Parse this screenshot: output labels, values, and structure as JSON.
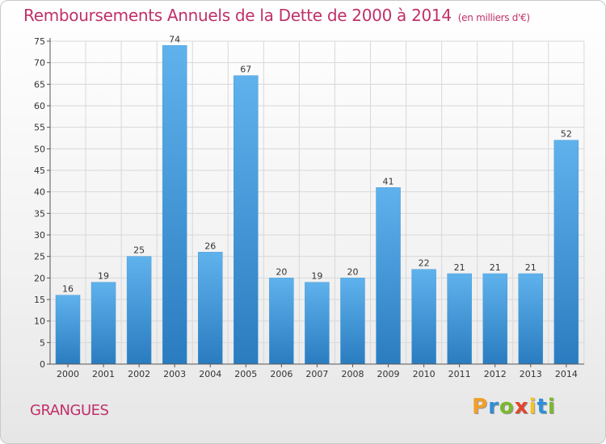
{
  "chart_data": {
    "type": "bar",
    "title": "Remboursements Annuels de la Dette de 2000 à 2014",
    "subtitle": "(en milliers d'€)",
    "categories": [
      "2000",
      "2001",
      "2002",
      "2003",
      "2004",
      "2005",
      "2006",
      "2007",
      "2008",
      "2009",
      "2010",
      "2011",
      "2012",
      "2013",
      "2014"
    ],
    "values": [
      16,
      19,
      25,
      74,
      26,
      67,
      20,
      19,
      20,
      41,
      22,
      21,
      21,
      21,
      52
    ],
    "data_labels": [
      "16",
      "19",
      "25",
      "74",
      "26",
      "67",
      "20",
      "19",
      "20",
      "41",
      "22",
      "21",
      "21",
      "21",
      "52"
    ],
    "ylim": [
      0,
      75
    ],
    "yticks": [
      0,
      5,
      10,
      15,
      20,
      25,
      30,
      35,
      40,
      45,
      50,
      55,
      60,
      65,
      70,
      75
    ],
    "grid": true,
    "xlabel": "",
    "ylabel": "",
    "colors": {
      "bar_light": "#5aaeea",
      "bar_dark": "#2a7cc0",
      "grid": "#d8d8d8",
      "axis": "#555555"
    }
  },
  "location_label": "GRANGUES",
  "brand": {
    "letters": [
      "P",
      "r",
      "o",
      "x",
      "i",
      "t",
      "i"
    ],
    "colors": [
      "#f2a02a",
      "#2d8fd8",
      "#7bb82e",
      "#e2452c",
      "#f2c22a",
      "#2d8fd8",
      "#7bb82e"
    ]
  },
  "colors": {
    "title": "#c03069"
  }
}
